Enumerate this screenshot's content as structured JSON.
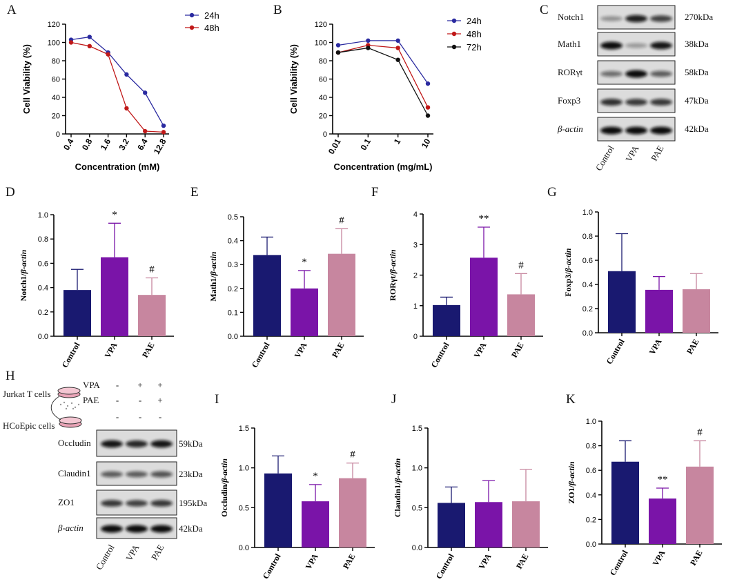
{
  "colors": {
    "control": "#191970",
    "vpa": "#7a14a8",
    "pae": "#c7869f",
    "line24": "#2a2aa0",
    "line48": "#c01818",
    "line72": "#111111"
  },
  "panel_labels": {
    "A": "A",
    "B": "B",
    "C": "C",
    "D": "D",
    "E": "E",
    "F": "F",
    "G": "G",
    "H": "H",
    "I": "I",
    "J": "J",
    "K": "K"
  },
  "chart_data": [
    {
      "id": "A",
      "type": "line",
      "xlabel": "Concentration (mM)",
      "ylabel": "Cell Viability (%)",
      "categories": [
        "0.4",
        "0.8",
        "1.6",
        "3.2",
        "6.4",
        "12.8"
      ],
      "ylim": [
        0,
        120
      ],
      "yticks": [
        "0",
        "20",
        "40",
        "60",
        "80",
        "100",
        "120"
      ],
      "series": [
        {
          "name": "24h",
          "color": "#2a2aa0",
          "values": [
            103,
            106,
            89,
            65,
            45,
            9
          ]
        },
        {
          "name": "48h",
          "color": "#c01818",
          "values": [
            100,
            96,
            87,
            28,
            3,
            2
          ]
        }
      ]
    },
    {
      "id": "B",
      "type": "line",
      "xlabel": "Concentration (mg/mL)",
      "ylabel": "Cell Viability (%)",
      "categories": [
        "0.01",
        "0.1",
        "1",
        "10"
      ],
      "ylim": [
        0,
        120
      ],
      "yticks": [
        "0",
        "20",
        "40",
        "60",
        "80",
        "100",
        "120"
      ],
      "series": [
        {
          "name": "24h",
          "color": "#2a2aa0",
          "values": [
            97,
            102,
            102,
            55
          ]
        },
        {
          "name": "48h",
          "color": "#c01818",
          "values": [
            89,
            97,
            94,
            29
          ]
        },
        {
          "name": "72h",
          "color": "#111111",
          "values": [
            89,
            94,
            81,
            20
          ]
        }
      ]
    },
    {
      "id": "D",
      "type": "bar",
      "ylabel": "Notch1/β-actin",
      "categories": [
        "Control",
        "VPA",
        "PAE"
      ],
      "values": [
        0.38,
        0.65,
        0.34
      ],
      "errors": [
        0.17,
        0.28,
        0.14
      ],
      "annotations": [
        "",
        "*",
        "#"
      ],
      "ylim": [
        0,
        1.0
      ],
      "yticks": [
        "0.0",
        "0.2",
        "0.4",
        "0.6",
        "0.8",
        "1.0"
      ]
    },
    {
      "id": "E",
      "type": "bar",
      "ylabel": "Math1/β-actin",
      "categories": [
        "Control",
        "VPA",
        "PAE"
      ],
      "values": [
        0.34,
        0.2,
        0.345
      ],
      "errors": [
        0.075,
        0.075,
        0.105
      ],
      "annotations": [
        "",
        "*",
        "#"
      ],
      "ylim": [
        0,
        0.5
      ],
      "yticks": [
        "0.0",
        "0.1",
        "0.2",
        "0.3",
        "0.4",
        "0.5"
      ]
    },
    {
      "id": "F",
      "type": "bar",
      "ylabel": "RORγt/β-actin",
      "categories": [
        "Control",
        "VPA",
        "PAE"
      ],
      "values": [
        1.02,
        2.57,
        1.37
      ],
      "errors": [
        0.26,
        1.0,
        0.68
      ],
      "annotations": [
        "",
        "**",
        "#"
      ],
      "ylim": [
        0,
        4
      ],
      "yticks": [
        "0",
        "1",
        "2",
        "3",
        "4"
      ]
    },
    {
      "id": "G",
      "type": "bar",
      "ylabel": "Foxp3/β-actin",
      "categories": [
        "Control",
        "VPA",
        "PAE"
      ],
      "values": [
        0.51,
        0.355,
        0.36
      ],
      "errors": [
        0.31,
        0.11,
        0.13
      ],
      "annotations": [
        "",
        "",
        ""
      ],
      "ylim": [
        0,
        1.0
      ],
      "yticks": [
        "0.0",
        "0.2",
        "0.4",
        "0.6",
        "0.8",
        "1.0"
      ]
    },
    {
      "id": "I",
      "type": "bar",
      "ylabel": "Occludin/β-actin",
      "categories": [
        "Control",
        "VPA",
        "PAE"
      ],
      "values": [
        0.93,
        0.58,
        0.87
      ],
      "errors": [
        0.22,
        0.21,
        0.19
      ],
      "annotations": [
        "",
        "*",
        "#"
      ],
      "ylim": [
        0,
        1.5
      ],
      "yticks": [
        "0.0",
        "0.5",
        "1.0",
        "1.5"
      ]
    },
    {
      "id": "J",
      "type": "bar",
      "ylabel": "Claudin1/β-actin",
      "categories": [
        "Control",
        "VPA",
        "PAE"
      ],
      "values": [
        0.56,
        0.57,
        0.58
      ],
      "errors": [
        0.2,
        0.27,
        0.4
      ],
      "annotations": [
        "",
        "",
        ""
      ],
      "ylim": [
        0,
        1.5
      ],
      "yticks": [
        "0.0",
        "0.5",
        "1.0",
        "1.5"
      ]
    },
    {
      "id": "K",
      "type": "bar",
      "ylabel": "ZO1/β-actin",
      "categories": [
        "Control",
        "VPA",
        "PAE"
      ],
      "values": [
        0.67,
        0.37,
        0.63
      ],
      "errors": [
        0.17,
        0.085,
        0.21
      ],
      "annotations": [
        "",
        "**",
        "#"
      ],
      "ylim": [
        0,
        1.0
      ],
      "yticks": [
        "0.0",
        "0.2",
        "0.4",
        "0.6",
        "0.8",
        "1.0"
      ]
    }
  ],
  "blot_c": {
    "rows": [
      {
        "name": "Notch1",
        "kda": "270kDa",
        "intensity": [
          0.25,
          0.9,
          0.7
        ]
      },
      {
        "name": "Math1",
        "kda": "38kDa",
        "intensity": [
          1.0,
          0.2,
          0.95
        ]
      },
      {
        "name": "RORγt",
        "kda": "58kDa",
        "intensity": [
          0.45,
          1.0,
          0.55
        ]
      },
      {
        "name": "Foxp3",
        "kda": "47kDa",
        "intensity": [
          0.8,
          0.75,
          0.75
        ]
      },
      {
        "name": "β-actin",
        "kda": "42kDa",
        "intensity": [
          1.0,
          1.0,
          1.0
        ]
      }
    ],
    "lanes": [
      "Control",
      "VPA",
      "PAE"
    ]
  },
  "blot_h": {
    "cell_top": "Jurkat T cells",
    "cell_bottom": "HCoEpic cells",
    "treat_vpa": "VPA",
    "treat_pae": "PAE",
    "vpa_marks": [
      "-",
      "+",
      "+"
    ],
    "pae_marks": [
      "-",
      "-",
      "+"
    ],
    "hco_marks": [
      "-",
      "-",
      "-"
    ],
    "rows": [
      {
        "name": "Occludin",
        "kda": "59kDa",
        "intensity": [
          0.95,
          0.85,
          0.95
        ]
      },
      {
        "name": "Claudin1",
        "kda": "23kDa",
        "intensity": [
          0.55,
          0.55,
          0.6
        ]
      },
      {
        "name": "ZO1",
        "kda": "195kDa",
        "intensity": [
          0.75,
          0.7,
          0.75
        ]
      },
      {
        "name": "β-actin",
        "kda": "42kDa",
        "intensity": [
          1.0,
          1.0,
          1.0
        ]
      }
    ],
    "lanes": [
      "Control",
      "VPA",
      "PAE"
    ]
  }
}
